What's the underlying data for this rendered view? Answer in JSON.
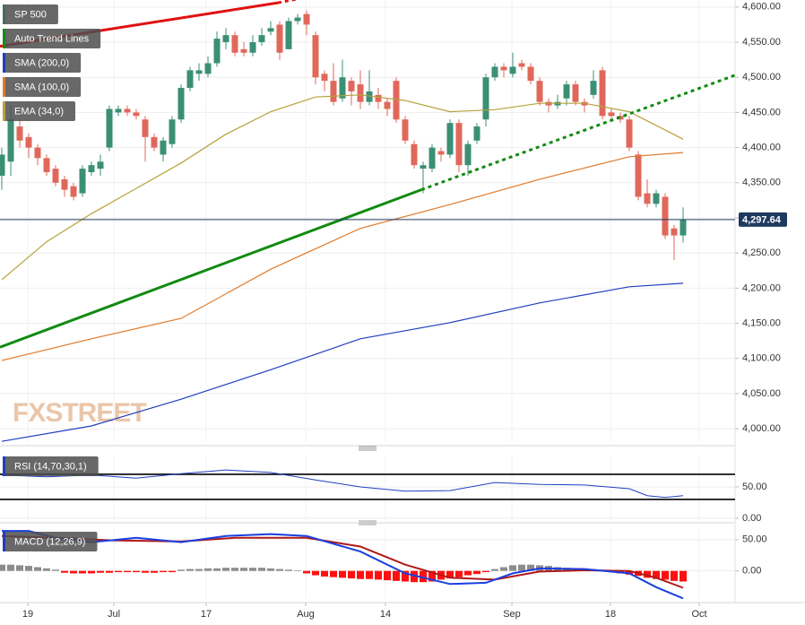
{
  "chart_data": [
    {
      "type": "candlestick",
      "title": "SP 500",
      "title_color": "#4a6a64",
      "x": [
        0,
        1,
        2,
        3,
        4,
        5,
        6,
        7,
        8,
        9,
        10,
        11,
        12,
        13,
        14,
        15,
        16,
        17,
        18,
        19,
        20,
        21,
        22,
        23,
        24,
        25,
        26,
        27,
        28,
        29,
        30,
        31,
        32,
        33,
        34,
        35,
        36,
        37,
        38,
        39,
        40,
        41,
        42,
        43,
        44,
        45,
        46,
        47,
        48,
        49,
        50,
        51,
        52,
        53,
        54,
        55,
        56,
        57,
        58,
        59,
        60,
        61,
        62,
        63,
        64,
        65,
        66,
        67,
        68,
        69,
        70,
        71,
        72,
        73,
        74,
        75,
        76
      ],
      "open": [
        4360,
        4380,
        4430,
        4415,
        4400,
        4385,
        4370,
        4355,
        4345,
        4335,
        4365,
        4370,
        4400,
        4450,
        4455,
        4450,
        4440,
        4415,
        4390,
        4405,
        4440,
        4485,
        4505,
        4505,
        4520,
        4550,
        4560,
        4540,
        4535,
        4550,
        4565,
        4575,
        4540,
        4580,
        4590,
        4560,
        4505,
        4495,
        4470,
        4495,
        4490,
        4465,
        4475,
        4465,
        4495,
        4440,
        4405,
        4370,
        4370,
        4395,
        4390,
        4435,
        4375,
        4410,
        4440,
        4500,
        4515,
        4505,
        4520,
        4515,
        4495,
        4465,
        4460,
        4470,
        4490,
        4465,
        4475,
        4510,
        4450,
        4445,
        4440,
        4390,
        4335,
        4320,
        4330,
        4285,
        4275
      ],
      "high": [
        4400,
        4460,
        4440,
        4420,
        4405,
        4390,
        4375,
        4360,
        4350,
        4375,
        4380,
        4390,
        4460,
        4460,
        4460,
        4455,
        4445,
        4420,
        4415,
        4445,
        4490,
        4515,
        4520,
        4530,
        4565,
        4570,
        4565,
        4550,
        4560,
        4570,
        4580,
        4580,
        4585,
        4590,
        4595,
        4565,
        4510,
        4520,
        4525,
        4500,
        4510,
        4510,
        4485,
        4470,
        4500,
        4445,
        4410,
        4380,
        4405,
        4400,
        4440,
        4440,
        4410,
        4435,
        4505,
        4520,
        4520,
        4535,
        4525,
        4520,
        4500,
        4470,
        4475,
        4495,
        4495,
        4470,
        4510,
        4515,
        4455,
        4450,
        4445,
        4395,
        4355,
        4340,
        4335,
        4290,
        4315
      ],
      "low": [
        4340,
        4360,
        4400,
        4385,
        4375,
        4360,
        4345,
        4330,
        4325,
        4330,
        4360,
        4360,
        4395,
        4445,
        4445,
        4440,
        4380,
        4395,
        4380,
        4400,
        4435,
        4480,
        4495,
        4500,
        4515,
        4540,
        4530,
        4530,
        4530,
        4545,
        4560,
        4525,
        4540,
        4575,
        4560,
        4490,
        4480,
        4460,
        4465,
        4460,
        4455,
        4460,
        4455,
        4445,
        4435,
        4405,
        4370,
        4335,
        4365,
        4380,
        4385,
        4365,
        4360,
        4405,
        4430,
        4495,
        4500,
        4500,
        4510,
        4490,
        4460,
        4450,
        4455,
        4460,
        4460,
        4450,
        4470,
        4440,
        4440,
        4435,
        4395,
        4325,
        4315,
        4315,
        4270,
        4240,
        4265
      ],
      "close": [
        4390,
        4440,
        4410,
        4400,
        4385,
        4365,
        4350,
        4340,
        4330,
        4370,
        4375,
        4380,
        4455,
        4455,
        4450,
        4445,
        4415,
        4400,
        4410,
        4440,
        4485,
        4510,
        4510,
        4520,
        4555,
        4560,
        4535,
        4535,
        4550,
        4560,
        4570,
        4535,
        4580,
        4585,
        4575,
        4500,
        4495,
        4465,
        4500,
        4480,
        4465,
        4480,
        4465,
        4455,
        4440,
        4410,
        4375,
        4375,
        4400,
        4390,
        4435,
        4375,
        4405,
        4430,
        4500,
        4515,
        4510,
        4515,
        4515,
        4495,
        4465,
        4460,
        4465,
        4490,
        4465,
        4460,
        4495,
        4445,
        4445,
        4440,
        4400,
        4330,
        4320,
        4335,
        4275,
        4275,
        4298
      ],
      "up_color": "#3b8f74",
      "down_color": "#e0685b",
      "overlays": [
        {
          "name": "SMA (200,0)",
          "color": "#1f3fbf",
          "x": [
            0,
            10,
            20,
            30,
            40,
            50,
            60,
            70,
            76
          ],
          "values": [
            3982,
            4004,
            4042,
            4084,
            4128,
            4151,
            4179,
            4202,
            4207
          ]
        },
        {
          "name": "SMA (100,0)",
          "color": "#e07a2a",
          "x": [
            0,
            10,
            20,
            30,
            40,
            50,
            60,
            70,
            76
          ],
          "values": [
            4097,
            4128,
            4157,
            4227,
            4285,
            4319,
            4355,
            4387,
            4393
          ]
        },
        {
          "name": "EMA (34,0)",
          "color": "#b5a23a",
          "x": [
            0,
            5,
            10,
            15,
            20,
            25,
            30,
            35,
            40,
            45,
            50,
            55,
            60,
            65,
            70,
            76
          ],
          "values": [
            4212,
            4266,
            4306,
            4342,
            4378,
            4419,
            4451,
            4472,
            4475,
            4467,
            4451,
            4454,
            4463,
            4463,
            4451,
            4412
          ]
        }
      ],
      "trend_lines": {
        "name": "Auto Trend Lines",
        "color": "#1a8a1a",
        "lines": [
          {
            "color": "#e01010",
            "style": "solid",
            "x": [
              -0.2,
              30.8
            ],
            "values": [
              4544,
              4606
            ]
          },
          {
            "color": "#e01010",
            "style": "dotted",
            "x": [
              30.8,
              32.8
            ],
            "values": [
              4606,
              4611
            ]
          },
          {
            "color": "#128a12",
            "style": "solid",
            "x": [
              -0.2,
              46.8
            ],
            "values": [
              4116,
              4340
            ]
          },
          {
            "color": "#128a12",
            "style": "dotted",
            "x": [
              46.8,
              81.8
            ],
            "values": [
              4340,
              4503
            ]
          }
        ]
      },
      "last_price": {
        "value": 4297.64,
        "label": "4,297.64"
      },
      "watermark": "FXSTREET",
      "grid": true,
      "xlim": [
        -0.2,
        81.8
      ],
      "xticks": [
        {
          "value": 2.9,
          "label": "19"
        },
        {
          "value": 12.5,
          "label": "Jul"
        },
        {
          "value": 22.8,
          "label": "17"
        },
        {
          "value": 33.9,
          "label": "Aug"
        },
        {
          "value": 42.8,
          "label": "14"
        },
        {
          "value": 56.9,
          "label": "Sep"
        },
        {
          "value": 67.9,
          "label": "18"
        },
        {
          "value": 77.8,
          "label": "Oct"
        }
      ],
      "ylim": [
        3981,
        4610
      ],
      "yticks": [
        {
          "value": 4000,
          "label": "4,000.00"
        },
        {
          "value": 4050,
          "label": "4,050.00"
        },
        {
          "value": 4100,
          "label": "4,100.00"
        },
        {
          "value": 4150,
          "label": "4,150.00"
        },
        {
          "value": 4200,
          "label": "4,200.00"
        },
        {
          "value": 4250,
          "label": "4,250.00"
        },
        {
          "value": 4300,
          "label": "4,300.00"
        },
        {
          "value": 4350,
          "label": "4,350.00"
        },
        {
          "value": 4400,
          "label": "4,400.00"
        },
        {
          "value": 4450,
          "label": "4,450.00"
        },
        {
          "value": 4500,
          "label": "4,500.00"
        },
        {
          "value": 4550,
          "label": "4,550.00"
        },
        {
          "value": 4600,
          "label": "4,600.00"
        }
      ]
    },
    {
      "type": "line",
      "title": "RSI (14,70,30,1)",
      "title_color": "#1f3fbf",
      "series": [
        {
          "color": "#1f3fbf",
          "x": [
            0,
            5,
            10,
            15,
            20,
            25,
            30,
            35,
            40,
            45,
            50,
            55,
            60,
            65,
            70,
            72,
            74,
            76
          ],
          "values": [
            69,
            66,
            69,
            64,
            71,
            77,
            73,
            61,
            50,
            43,
            44,
            57,
            54,
            53,
            47,
            36,
            33,
            36
          ]
        }
      ],
      "levels": [
        70,
        30
      ],
      "grid": true,
      "xlim": [
        -0.2,
        81.8
      ],
      "ylim": [
        -3,
        100
      ],
      "yticks": [
        {
          "value": 50,
          "label": "50.00"
        },
        {
          "value": 0,
          "label": "0.00"
        }
      ]
    },
    {
      "type": "macd",
      "title": "MACD (12,26,9)",
      "title_color": "#1f3fbf",
      "macd": {
        "color": "#1a3fe0",
        "x": [
          0,
          3,
          6,
          10,
          15,
          20,
          25,
          30,
          34,
          40,
          45,
          50,
          54,
          57,
          60,
          65,
          70,
          73,
          76
        ],
        "values": [
          64,
          64,
          53,
          46,
          53,
          46,
          56,
          59,
          56,
          31,
          -4,
          -21,
          -19,
          -4,
          4,
          3,
          -4,
          -26,
          -44
        ]
      },
      "signal": {
        "color": "#b01818",
        "x": [
          0,
          6,
          12,
          20,
          26,
          34,
          40,
          45,
          50,
          55,
          60,
          65,
          70,
          73,
          76
        ],
        "values": [
          56,
          53,
          49,
          47,
          53,
          53,
          39,
          10,
          -11,
          -14,
          -1,
          1,
          0,
          -11,
          -27
        ]
      },
      "histogram": {
        "up_color": "#8c8c8c",
        "down_color": "#ff1010",
        "values": [
          10,
          10,
          9,
          8,
          6,
          4,
          2,
          -3,
          -4,
          -4,
          -4,
          -3,
          -3,
          -2,
          -2,
          -2,
          -3,
          -3,
          -2,
          -2,
          2,
          3,
          3,
          4,
          4,
          5,
          5,
          5,
          5,
          5,
          4,
          3,
          2,
          1,
          -4,
          -7,
          -9,
          -10,
          -11,
          -12,
          -13,
          -13,
          -14,
          -15,
          -16,
          -17,
          -18,
          -18,
          -17,
          -14,
          -12,
          -10,
          -7,
          -5,
          -2,
          3,
          6,
          9,
          10,
          10,
          9,
          8,
          6,
          5,
          4,
          4,
          3,
          2,
          -2,
          -4,
          -6,
          -8,
          -11,
          -13,
          -14,
          -16,
          -17
        ]
      },
      "grid": true,
      "xlim": [
        -0.2,
        81.8
      ],
      "ylim": [
        -45,
        67
      ],
      "yticks": [
        {
          "value": 50,
          "label": "50.00"
        },
        {
          "value": 0,
          "label": "0.00"
        }
      ]
    }
  ]
}
